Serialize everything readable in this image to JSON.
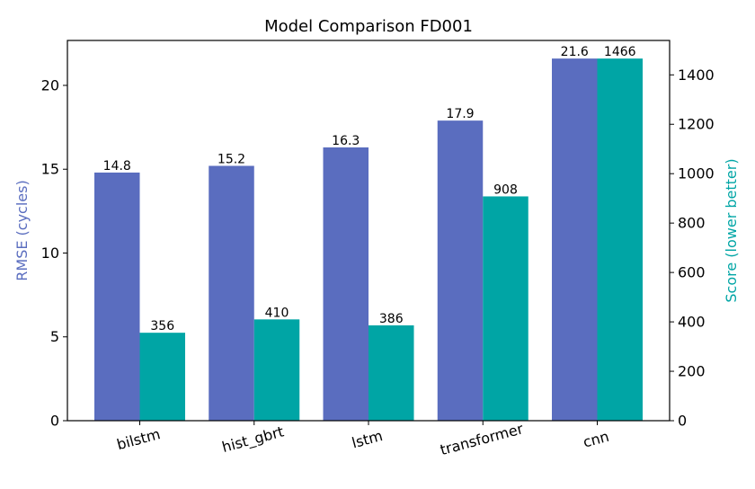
{
  "chart_data": {
    "type": "bar",
    "title": "Model Comparison FD001",
    "categories": [
      "bilstm",
      "hist_gbrt",
      "lstm",
      "transformer",
      "cnn"
    ],
    "series": [
      {
        "name": "RMSE",
        "axis": "left",
        "color": "#5A6DBF",
        "values": [
          14.8,
          15.2,
          16.3,
          17.9,
          21.6
        ],
        "labels": [
          "14.8",
          "15.2",
          "16.3",
          "17.9",
          "21.6"
        ]
      },
      {
        "name": "Score",
        "axis": "right",
        "color": "#00A5A5",
        "values": [
          356,
          410,
          386,
          908,
          1466
        ],
        "labels": [
          "356",
          "410",
          "386",
          "908",
          "1466"
        ]
      }
    ],
    "y_left": {
      "label": "RMSE (cycles)",
      "color": "#5A6DBF",
      "ylim": [
        0,
        22.68
      ],
      "ticks": [
        0,
        5,
        10,
        15,
        20
      ],
      "tick_labels": [
        "0",
        "5",
        "10",
        "15",
        "20"
      ]
    },
    "y_right": {
      "label": "Score (lower better)",
      "color": "#00A5A5",
      "ylim": [
        0,
        1539.3
      ],
      "ticks": [
        0,
        200,
        400,
        600,
        800,
        1000,
        1200,
        1400
      ],
      "tick_labels": [
        "0",
        "200",
        "400",
        "600",
        "800",
        "1000",
        "1200",
        "1400"
      ]
    },
    "x_tick_rotation_deg": -15,
    "grid": false
  }
}
